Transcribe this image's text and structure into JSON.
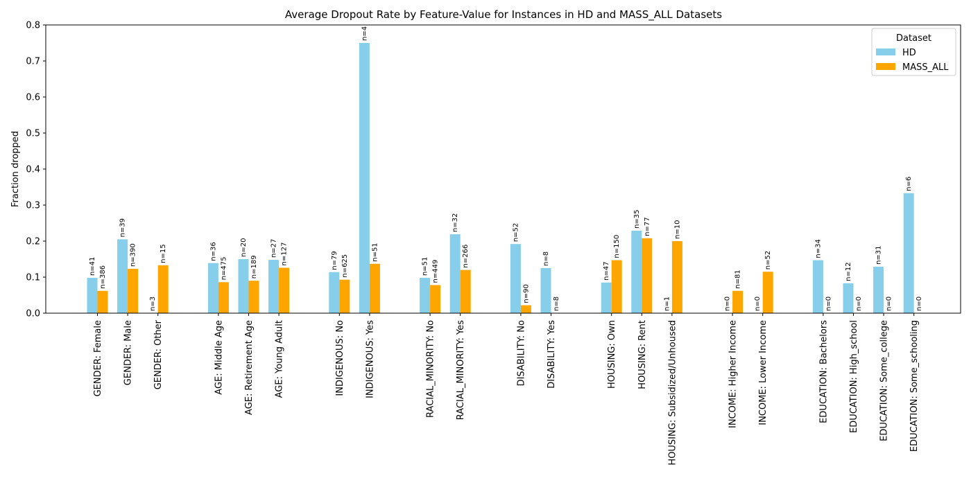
{
  "chart_data": {
    "type": "bar",
    "title": "Average Dropout Rate by Feature-Value for Instances in HD and MASS_ALL Datasets",
    "xlabel": "",
    "ylabel": "Fraction dropped",
    "ylim": [
      0,
      0.8
    ],
    "yticks": [
      "0.0",
      "0.1",
      "0.2",
      "0.3",
      "0.4",
      "0.5",
      "0.6",
      "0.7",
      "0.8"
    ],
    "legend": {
      "title": "Dataset",
      "position": "top-right"
    },
    "colors": {
      "HD": "#87ceeb",
      "MASS_ALL": "#ffa500"
    },
    "groups": [
      {
        "categories": [
          "GENDER: Female",
          "GENDER: Male",
          "GENDER: Other"
        ]
      },
      {
        "categories": [
          "AGE: Middle Age",
          "AGE: Retirement Age",
          "AGE: Young Adult"
        ]
      },
      {
        "categories": [
          "INDIGENOUS: No",
          "INDIGENOUS: Yes"
        ]
      },
      {
        "categories": [
          "RACIAL_MINORITY: No",
          "RACIAL_MINORITY: Yes"
        ]
      },
      {
        "categories": [
          "DISABILITY: No",
          "DISABILITY: Yes"
        ]
      },
      {
        "categories": [
          "HOUSING: Own",
          "HOUSING: Rent",
          "HOUSING: Subsidized/Unhoused"
        ]
      },
      {
        "categories": [
          "INCOME: Higher Income",
          "INCOME: Lower Income"
        ]
      },
      {
        "categories": [
          "EDUCATION: Bachelors",
          "EDUCATION: High_school",
          "EDUCATION: Some_college",
          "EDUCATION: Some_schooling"
        ]
      }
    ],
    "series": [
      {
        "name": "HD",
        "values": [
          0.098,
          0.205,
          0.0,
          0.139,
          0.15,
          0.148,
          0.114,
          0.75,
          0.098,
          0.219,
          0.192,
          0.125,
          0.085,
          0.229,
          0.0,
          0.0,
          0.0,
          0.147,
          0.083,
          0.129,
          0.333
        ],
        "labels": [
          "n=41",
          "n=39",
          "n=3",
          "n=36",
          "n=20",
          "n=27",
          "n=79",
          "n=4",
          "n=51",
          "n=32",
          "n=52",
          "n=8",
          "n=47",
          "n=35",
          "n=1",
          "n=0",
          "n=0",
          "n=34",
          "n=12",
          "n=31",
          "n=6"
        ]
      },
      {
        "name": "MASS_ALL",
        "values": [
          0.062,
          0.123,
          0.133,
          0.086,
          0.09,
          0.126,
          0.093,
          0.137,
          0.078,
          0.12,
          0.022,
          0.0,
          0.147,
          0.208,
          0.2,
          0.062,
          0.115,
          0.0,
          0.0,
          0.0,
          0.0
        ],
        "labels": [
          "n=386",
          "n=390",
          "n=15",
          "n=475",
          "n=189",
          "n=127",
          "n=625",
          "n=51",
          "n=449",
          "n=266",
          "n=90",
          "n=8",
          "n=150",
          "n=77",
          "n=10",
          "n=81",
          "n=52",
          "n=0",
          "n=0",
          "n=0",
          "n=0"
        ]
      }
    ]
  }
}
